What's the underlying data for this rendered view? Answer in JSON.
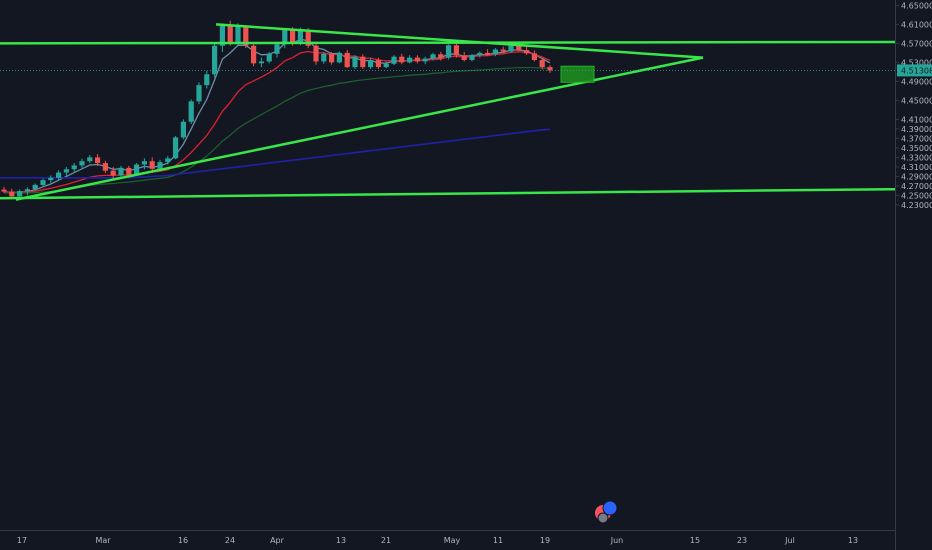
{
  "chart_data": {
    "type": "candlestick",
    "y_axis": {
      "range": [
        4.22,
        4.655
      ],
      "ticks": [
        "4.65000",
        "4.61000",
        "4.57000",
        "4.53000",
        "4.49000",
        "4.45000",
        "4.41000",
        "4.39000",
        "4.37000",
        "4.35000",
        "4.33000",
        "4.31000",
        "4.29000",
        "4.27000",
        "4.25000",
        "4.23000"
      ]
    },
    "x_axis": {
      "ticks": [
        "17",
        "Mar",
        "16",
        "24",
        "Apr",
        "13",
        "21",
        "May",
        "11",
        "19",
        "Jun",
        "15",
        "23",
        "Jul",
        "13"
      ]
    },
    "last_price": {
      "label": "4.51308",
      "value": 4.51308
    },
    "candles": [
      {
        "o": 4.262,
        "h": 4.268,
        "l": 4.255,
        "c": 4.258
      },
      {
        "o": 4.258,
        "h": 4.264,
        "l": 4.244,
        "c": 4.248
      },
      {
        "o": 4.248,
        "h": 4.262,
        "l": 4.242,
        "c": 4.259
      },
      {
        "o": 4.259,
        "h": 4.267,
        "l": 4.25,
        "c": 4.263
      },
      {
        "o": 4.263,
        "h": 4.275,
        "l": 4.26,
        "c": 4.272
      },
      {
        "o": 4.272,
        "h": 4.285,
        "l": 4.268,
        "c": 4.282
      },
      {
        "o": 4.282,
        "h": 4.292,
        "l": 4.276,
        "c": 4.287
      },
      {
        "o": 4.287,
        "h": 4.303,
        "l": 4.283,
        "c": 4.298
      },
      {
        "o": 4.298,
        "h": 4.31,
        "l": 4.29,
        "c": 4.305
      },
      {
        "o": 4.305,
        "h": 4.318,
        "l": 4.3,
        "c": 4.313
      },
      {
        "o": 4.313,
        "h": 4.327,
        "l": 4.308,
        "c": 4.322
      },
      {
        "o": 4.322,
        "h": 4.335,
        "l": 4.318,
        "c": 4.33
      },
      {
        "o": 4.33,
        "h": 4.337,
        "l": 4.312,
        "c": 4.318
      },
      {
        "o": 4.318,
        "h": 4.323,
        "l": 4.297,
        "c": 4.302
      },
      {
        "o": 4.302,
        "h": 4.31,
        "l": 4.285,
        "c": 4.292
      },
      {
        "o": 4.292,
        "h": 4.312,
        "l": 4.287,
        "c": 4.308
      },
      {
        "o": 4.308,
        "h": 4.312,
        "l": 4.288,
        "c": 4.293
      },
      {
        "o": 4.293,
        "h": 4.318,
        "l": 4.291,
        "c": 4.315
      },
      {
        "o": 4.315,
        "h": 4.328,
        "l": 4.305,
        "c": 4.322
      },
      {
        "o": 4.322,
        "h": 4.33,
        "l": 4.3,
        "c": 4.306
      },
      {
        "o": 4.306,
        "h": 4.325,
        "l": 4.302,
        "c": 4.32
      },
      {
        "o": 4.32,
        "h": 4.333,
        "l": 4.315,
        "c": 4.328
      },
      {
        "o": 4.328,
        "h": 4.375,
        "l": 4.326,
        "c": 4.372
      },
      {
        "o": 4.372,
        "h": 4.41,
        "l": 4.368,
        "c": 4.405
      },
      {
        "o": 4.405,
        "h": 4.452,
        "l": 4.4,
        "c": 4.448
      },
      {
        "o": 4.448,
        "h": 4.488,
        "l": 4.442,
        "c": 4.482
      },
      {
        "o": 4.482,
        "h": 4.512,
        "l": 4.475,
        "c": 4.505
      },
      {
        "o": 4.505,
        "h": 4.572,
        "l": 4.498,
        "c": 4.565
      },
      {
        "o": 4.565,
        "h": 4.612,
        "l": 4.552,
        "c": 4.608
      },
      {
        "o": 4.608,
        "h": 4.618,
        "l": 4.565,
        "c": 4.572
      },
      {
        "o": 4.572,
        "h": 4.612,
        "l": 4.565,
        "c": 4.605
      },
      {
        "o": 4.605,
        "h": 4.608,
        "l": 4.56,
        "c": 4.565
      },
      {
        "o": 4.565,
        "h": 4.572,
        "l": 4.522,
        "c": 4.528
      },
      {
        "o": 4.528,
        "h": 4.54,
        "l": 4.52,
        "c": 4.532
      },
      {
        "o": 4.532,
        "h": 4.552,
        "l": 4.528,
        "c": 4.548
      },
      {
        "o": 4.548,
        "h": 4.57,
        "l": 4.54,
        "c": 4.568
      },
      {
        "o": 4.568,
        "h": 4.602,
        "l": 4.56,
        "c": 4.598
      },
      {
        "o": 4.598,
        "h": 4.604,
        "l": 4.565,
        "c": 4.57
      },
      {
        "o": 4.57,
        "h": 4.603,
        "l": 4.566,
        "c": 4.598
      },
      {
        "o": 4.598,
        "h": 4.602,
        "l": 4.56,
        "c": 4.565
      },
      {
        "o": 4.565,
        "h": 4.57,
        "l": 4.525,
        "c": 4.532
      },
      {
        "o": 4.532,
        "h": 4.552,
        "l": 4.527,
        "c": 4.548
      },
      {
        "o": 4.548,
        "h": 4.552,
        "l": 4.525,
        "c": 4.53
      },
      {
        "o": 4.53,
        "h": 4.553,
        "l": 4.528,
        "c": 4.55
      },
      {
        "o": 4.55,
        "h": 4.556,
        "l": 4.518,
        "c": 4.52
      },
      {
        "o": 4.52,
        "h": 4.545,
        "l": 4.516,
        "c": 4.542
      },
      {
        "o": 4.542,
        "h": 4.547,
        "l": 4.516,
        "c": 4.52
      },
      {
        "o": 4.52,
        "h": 4.54,
        "l": 4.516,
        "c": 4.535
      },
      {
        "o": 4.535,
        "h": 4.54,
        "l": 4.516,
        "c": 4.52
      },
      {
        "o": 4.52,
        "h": 4.532,
        "l": 4.518,
        "c": 4.527
      },
      {
        "o": 4.527,
        "h": 4.545,
        "l": 4.524,
        "c": 4.542
      },
      {
        "o": 4.542,
        "h": 4.548,
        "l": 4.526,
        "c": 4.53
      },
      {
        "o": 4.53,
        "h": 4.545,
        "l": 4.528,
        "c": 4.54
      },
      {
        "o": 4.54,
        "h": 4.545,
        "l": 4.528,
        "c": 4.532
      },
      {
        "o": 4.532,
        "h": 4.542,
        "l": 4.526,
        "c": 4.538
      },
      {
        "o": 4.538,
        "h": 4.55,
        "l": 4.534,
        "c": 4.547
      },
      {
        "o": 4.547,
        "h": 4.552,
        "l": 4.534,
        "c": 4.54
      },
      {
        "o": 4.54,
        "h": 4.568,
        "l": 4.536,
        "c": 4.566
      },
      {
        "o": 4.566,
        "h": 4.57,
        "l": 4.54,
        "c": 4.545
      },
      {
        "o": 4.545,
        "h": 4.552,
        "l": 4.532,
        "c": 4.535
      },
      {
        "o": 4.535,
        "h": 4.548,
        "l": 4.532,
        "c": 4.545
      },
      {
        "o": 4.545,
        "h": 4.553,
        "l": 4.54,
        "c": 4.55
      },
      {
        "o": 4.55,
        "h": 4.558,
        "l": 4.544,
        "c": 4.547
      },
      {
        "o": 4.547,
        "h": 4.56,
        "l": 4.543,
        "c": 4.557
      },
      {
        "o": 4.557,
        "h": 4.563,
        "l": 4.55,
        "c": 4.553
      },
      {
        "o": 4.553,
        "h": 4.567,
        "l": 4.55,
        "c": 4.565
      },
      {
        "o": 4.565,
        "h": 4.57,
        "l": 4.553,
        "c": 4.556
      },
      {
        "o": 4.556,
        "h": 4.566,
        "l": 4.546,
        "c": 4.549
      },
      {
        "o": 4.549,
        "h": 4.555,
        "l": 4.532,
        "c": 4.535
      },
      {
        "o": 4.535,
        "h": 4.538,
        "l": 4.515,
        "c": 4.52
      },
      {
        "o": 4.52,
        "h": 4.524,
        "l": 4.508,
        "c": 4.513
      }
    ],
    "overlays": [
      {
        "name": "fast_ma",
        "color": "#6a8fa8",
        "values": [
          4.258,
          4.256,
          4.257,
          4.258,
          4.262,
          4.268,
          4.274,
          4.282,
          4.29,
          4.298,
          4.306,
          4.314,
          4.315,
          4.311,
          4.305,
          4.306,
          4.302,
          4.306,
          4.311,
          4.309,
          4.312,
          4.318,
          4.335,
          4.358,
          4.39,
          4.423,
          4.452,
          4.493,
          4.537,
          4.55,
          4.566,
          4.566,
          4.554,
          4.546,
          4.547,
          4.554,
          4.57,
          4.57,
          4.579,
          4.575,
          4.561,
          4.557,
          4.548,
          4.549,
          4.539,
          4.54,
          4.533,
          4.534,
          4.529,
          4.528,
          4.533,
          4.532,
          4.535,
          4.534,
          4.535,
          4.539,
          4.539,
          4.548,
          4.547,
          4.543,
          4.544,
          4.546,
          4.546,
          4.55,
          4.551,
          4.556,
          4.556,
          4.554,
          4.547,
          4.538,
          4.529
        ]
      },
      {
        "name": "ma_red",
        "color": "#e0202e",
        "values": [
          4.257,
          4.256,
          4.256,
          4.257,
          4.259,
          4.262,
          4.265,
          4.269,
          4.273,
          4.278,
          4.283,
          4.288,
          4.291,
          4.292,
          4.292,
          4.293,
          4.293,
          4.295,
          4.298,
          4.299,
          4.301,
          4.304,
          4.313,
          4.325,
          4.34,
          4.358,
          4.376,
          4.4,
          4.427,
          4.446,
          4.468,
          4.483,
          4.491,
          4.499,
          4.508,
          4.519,
          4.533,
          4.54,
          4.55,
          4.553,
          4.55,
          4.55,
          4.546,
          4.547,
          4.543,
          4.543,
          4.539,
          4.539,
          4.535,
          4.533,
          4.534,
          4.533,
          4.534,
          4.534,
          4.534,
          4.536,
          4.537,
          4.542,
          4.543,
          4.541,
          4.542,
          4.544,
          4.544,
          4.547,
          4.548,
          4.551,
          4.552,
          4.551,
          4.547,
          4.541,
          4.534
        ]
      },
      {
        "name": "ma_green",
        "color": "#1e5c2a",
        "values": [
          4.255,
          4.255,
          4.255,
          4.255,
          4.256,
          4.257,
          4.258,
          4.26,
          4.262,
          4.265,
          4.268,
          4.271,
          4.273,
          4.274,
          4.275,
          4.277,
          4.278,
          4.28,
          4.282,
          4.284,
          4.286,
          4.288,
          4.293,
          4.3,
          4.31,
          4.321,
          4.333,
          4.348,
          4.364,
          4.377,
          4.391,
          4.402,
          4.411,
          4.42,
          4.429,
          4.438,
          4.448,
          4.456,
          4.465,
          4.471,
          4.475,
          4.479,
          4.482,
          4.486,
          4.488,
          4.491,
          4.493,
          4.495,
          4.497,
          4.498,
          4.5,
          4.501,
          4.503,
          4.504,
          4.505,
          4.507,
          4.508,
          4.51,
          4.511,
          4.512,
          4.513,
          4.514,
          4.515,
          4.516,
          4.517,
          4.518,
          4.519,
          4.519,
          4.519,
          4.518,
          4.518
        ]
      },
      {
        "name": "ma_blue",
        "color": "#1f22a6",
        "values": [
          4.287,
          4.287,
          4.287,
          4.287,
          4.287,
          4.287,
          4.287,
          4.287,
          4.287,
          4.287,
          4.287,
          4.287,
          4.287,
          4.287,
          4.287,
          4.287,
          4.287,
          4.288,
          4.289,
          4.29,
          4.291,
          4.292,
          4.294,
          4.296,
          4.298,
          4.3,
          4.302,
          4.304,
          4.306,
          4.308,
          4.31,
          4.312,
          4.314,
          4.316,
          4.318,
          4.32,
          4.322,
          4.324,
          4.326,
          4.328,
          4.33,
          4.332,
          4.334,
          4.336,
          4.338,
          4.34,
          4.342,
          4.344,
          4.346,
          4.348,
          4.35,
          4.352,
          4.354,
          4.356,
          4.358,
          4.36,
          4.362,
          4.364,
          4.366,
          4.368,
          4.37,
          4.372,
          4.374,
          4.376,
          4.378,
          4.38,
          4.382,
          4.384,
          4.386,
          4.388,
          4.389
        ]
      }
    ],
    "colors": {
      "up": "#26a69a",
      "down": "#ef5350",
      "trend": "#39e64a",
      "zone": "#1e8c1e",
      "bg": "#131722"
    }
  }
}
